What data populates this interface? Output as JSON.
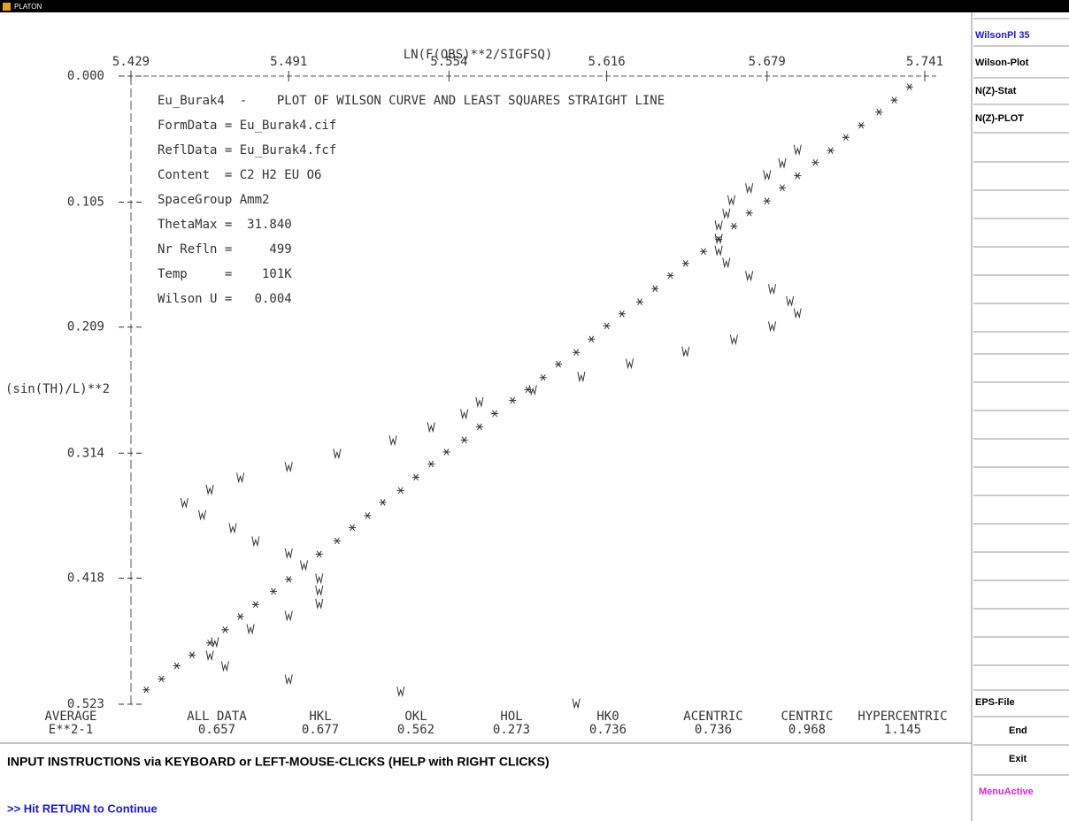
{
  "window_title": "PLATON",
  "menu": [
    "WilsonPl 35",
    "Wilson-Plot",
    "N(Z)-Stat",
    "N(Z)-PLOT",
    "EPS-File",
    "End",
    "Exit",
    "MenuActive"
  ],
  "instructions": "INPUT INSTRUCTIONS via KEYBOARD or LEFT-MOUSE-CLICKS (HELP with RIGHT CLICKS)",
  "prompt": ">> Hit RETURN to Continue",
  "statistics": {
    "row_header": [
      "AVERAGE",
      "E**2-1"
    ],
    "labels": [
      "ALL DATA",
      "HKL",
      "OKL",
      "HOL",
      "HK0",
      "ACENTRIC",
      "CENTRIC",
      "HYPERCENTRIC"
    ],
    "values": [
      0.657,
      0.677,
      0.562,
      0.273,
      0.736,
      0.736,
      0.968,
      1.145
    ]
  },
  "chart_data": {
    "type": "scatter",
    "x_label": "LN(F(OBS)**2/SIGFSQ)",
    "y_label": "(sin(TH)/L)**2",
    "annotations": [
      "Eu_Burak4  -    PLOT OF WILSON CURVE AND LEAST SQUARES STRAIGHT LINE",
      "FormData = Eu_Burak4.cif",
      "ReflData = Eu_Burak4.fcf",
      "Content  = C2 H2 EU O6",
      "SpaceGroup Amm2",
      "ThetaMax =  31.840",
      "Nr Refln =     499",
      "Temp     =    101K",
      "Wilson U =   0.004"
    ],
    "xlim": [
      5.429,
      5.741
    ],
    "xticks": [
      5.429,
      5.491,
      5.554,
      5.616,
      5.679,
      5.741
    ],
    "ylim": [
      0,
      0.523
    ],
    "yaxis_inverted": true,
    "yticks": [
      {
        "value": 0,
        "label": "0.000"
      },
      0.105,
      0.209,
      0.314,
      0.418,
      0.523
    ],
    "series": [
      {
        "marker": "star",
        "color": "#333333",
        "x": [
          5.435,
          5.441,
          5.447,
          5.453,
          5.46,
          5.466,
          5.472,
          5.478,
          5.485,
          5.491,
          5.503,
          5.51,
          5.516,
          5.522,
          5.528,
          5.535,
          5.541,
          5.547,
          5.553,
          5.56,
          5.566,
          5.572,
          5.579,
          5.585,
          5.591,
          5.597,
          5.604,
          5.61,
          5.616,
          5.622,
          5.629,
          5.635,
          5.641,
          5.647,
          5.654,
          5.66,
          5.666,
          5.672,
          5.679,
          5.685,
          5.691,
          5.698,
          5.704,
          5.71,
          5.716,
          5.723,
          5.729,
          5.735
        ],
        "values": [
          0.511,
          0.502,
          0.491,
          0.482,
          0.472,
          0.461,
          0.45,
          0.44,
          0.429,
          0.419,
          0.398,
          0.387,
          0.376,
          0.366,
          0.355,
          0.345,
          0.334,
          0.323,
          0.313,
          0.303,
          0.292,
          0.281,
          0.27,
          0.261,
          0.251,
          0.24,
          0.23,
          0.219,
          0.208,
          0.198,
          0.188,
          0.177,
          0.166,
          0.156,
          0.146,
          0.136,
          0.125,
          0.114,
          0.104,
          0.093,
          0.083,
          0.072,
          0.062,
          0.051,
          0.041,
          0.03,
          0.02,
          0.009
        ]
      },
      {
        "marker": "w",
        "color": "#333333",
        "x": [
          5.45,
          5.46,
          5.457,
          5.472,
          5.469,
          5.478,
          5.491,
          5.51,
          5.491,
          5.497,
          5.503,
          5.503,
          5.503,
          5.491,
          5.476,
          5.462,
          5.46,
          5.466,
          5.491,
          5.535,
          5.604,
          5.532,
          5.547,
          5.56,
          5.566,
          5.587,
          5.606,
          5.625,
          5.647,
          5.666,
          5.681,
          5.691,
          5.688,
          5.681,
          5.672,
          5.663,
          5.66,
          5.66,
          5.66,
          5.663,
          5.665,
          5.672,
          5.679,
          5.685,
          5.691
        ],
        "values": [
          0.355,
          0.344,
          0.365,
          0.334,
          0.376,
          0.387,
          0.325,
          0.314,
          0.397,
          0.407,
          0.418,
          0.428,
          0.439,
          0.449,
          0.46,
          0.471,
          0.482,
          0.491,
          0.502,
          0.512,
          0.522,
          0.303,
          0.292,
          0.281,
          0.271,
          0.261,
          0.25,
          0.239,
          0.229,
          0.219,
          0.208,
          0.197,
          0.187,
          0.177,
          0.166,
          0.155,
          0.145,
          0.135,
          0.124,
          0.114,
          0.103,
          0.093,
          0.082,
          0.072,
          0.061
        ]
      }
    ]
  }
}
